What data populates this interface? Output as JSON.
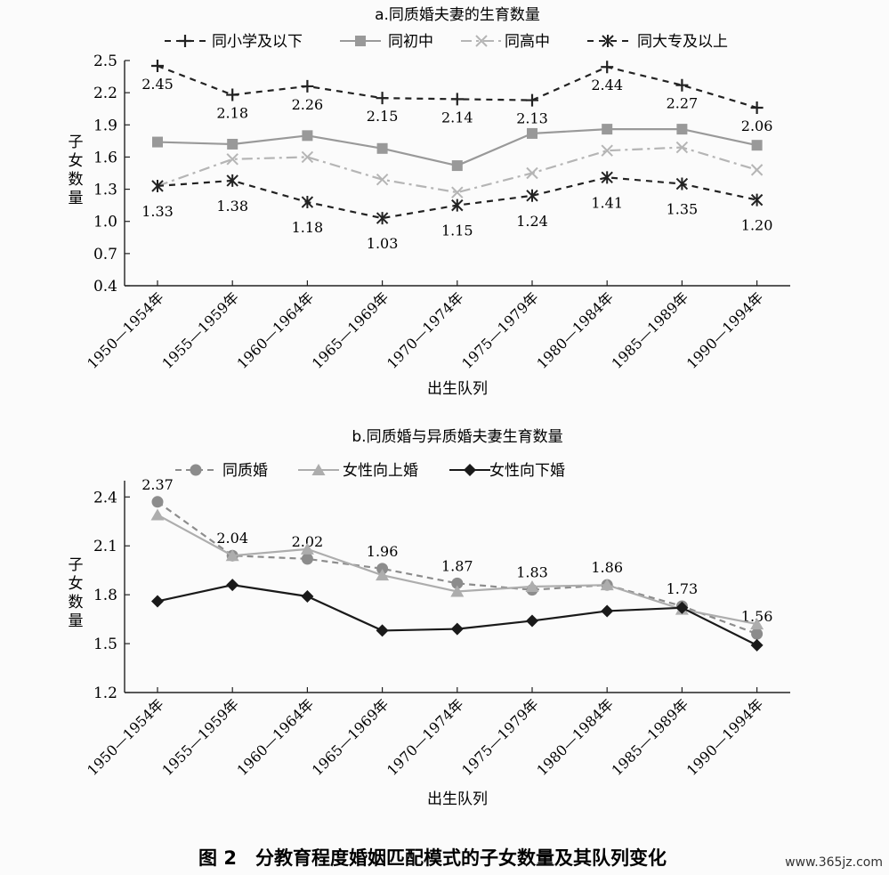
{
  "figure_caption": "图 2　分教育程度婚姻匹配模式的子女数量及其队列变化",
  "watermark": "www.365jz.com",
  "chart_data": [
    {
      "id": "a",
      "type": "line",
      "title": "a.同质婚夫妻的生育数量",
      "xlabel": "出生队列",
      "ylabel": "子女数量",
      "ylim": [
        0.4,
        2.5
      ],
      "yticks": [
        "0.4",
        "0.7",
        "1.0",
        "1.3",
        "1.6",
        "1.9",
        "2.2",
        "2.5"
      ],
      "ytick_values": [
        0.4,
        0.7,
        1.0,
        1.3,
        1.6,
        1.9,
        2.2,
        2.5
      ],
      "categories": [
        "1950—1954年",
        "1955—1959年",
        "1960—1964年",
        "1965—1969年",
        "1970—1974年",
        "1975—1979年",
        "1980—1984年",
        "1985—1989年",
        "1990—1994年"
      ],
      "legend_position": "top",
      "grid": false,
      "series": [
        {
          "name": "同小学及以下",
          "values": [
            2.45,
            2.18,
            2.26,
            2.15,
            2.14,
            2.13,
            2.44,
            2.27,
            2.06
          ],
          "labels": [
            "2.45",
            "2.18",
            "2.26",
            "2.15",
            "2.14",
            "2.13",
            "2.44",
            "2.27",
            "2.06"
          ],
          "color": "#222222",
          "marker": "plus",
          "dash": "7,6"
        },
        {
          "name": "同初中",
          "values": [
            1.74,
            1.72,
            1.8,
            1.68,
            1.52,
            1.82,
            1.86,
            1.86,
            1.71
          ],
          "color": "#999999",
          "marker": "square",
          "dash": ""
        },
        {
          "name": "同高中",
          "values": [
            1.33,
            1.58,
            1.6,
            1.39,
            1.27,
            1.45,
            1.66,
            1.69,
            1.48
          ],
          "color": "#b5b5b5",
          "marker": "x",
          "dash": "12,5,3,5"
        },
        {
          "name": "同大专及以上",
          "values": [
            1.33,
            1.38,
            1.18,
            1.03,
            1.15,
            1.24,
            1.41,
            1.35,
            1.2
          ],
          "labels": [
            "1.33",
            "1.38",
            "1.18",
            "1.03",
            "1.15",
            "1.24",
            "1.41",
            "1.35",
            "1.20"
          ],
          "color": "#222222",
          "marker": "star",
          "dash": "7,6"
        }
      ]
    },
    {
      "id": "b",
      "type": "line",
      "title": "b.同质婚与异质婚夫妻生育数量",
      "xlabel": "出生队列",
      "ylabel": "子女数量",
      "ylim": [
        1.2,
        2.5
      ],
      "yticks": [
        "1.2",
        "1.5",
        "1.8",
        "2.1",
        "2.4"
      ],
      "ytick_values": [
        1.2,
        1.5,
        1.8,
        2.1,
        2.4
      ],
      "categories": [
        "1950—1954年",
        "1955—1959年",
        "1960—1964年",
        "1965—1969年",
        "1970—1974年",
        "1975—1979年",
        "1980—1984年",
        "1985—1989年",
        "1990—1994年"
      ],
      "legend_position": "top",
      "grid": false,
      "series": [
        {
          "name": "同质婚",
          "values": [
            2.37,
            2.04,
            2.02,
            1.96,
            1.87,
            1.83,
            1.86,
            1.73,
            1.56
          ],
          "labels": [
            "2.37",
            "2.04",
            "2.02",
            "1.96",
            "1.87",
            "1.83",
            "1.86",
            "1.73",
            "1.56"
          ],
          "color": "#8c8c8c",
          "marker": "circle",
          "dash": "7,5"
        },
        {
          "name": "女性向上婚",
          "values": [
            2.29,
            2.04,
            2.08,
            1.92,
            1.82,
            1.85,
            1.86,
            1.71,
            1.62
          ],
          "color": "#adadad",
          "marker": "triangle",
          "dash": ""
        },
        {
          "name": "女性向下婚",
          "values": [
            1.76,
            1.86,
            1.79,
            1.58,
            1.59,
            1.64,
            1.7,
            1.72,
            1.49
          ],
          "color": "#1a1a1a",
          "marker": "diamond",
          "dash": ""
        }
      ]
    }
  ]
}
